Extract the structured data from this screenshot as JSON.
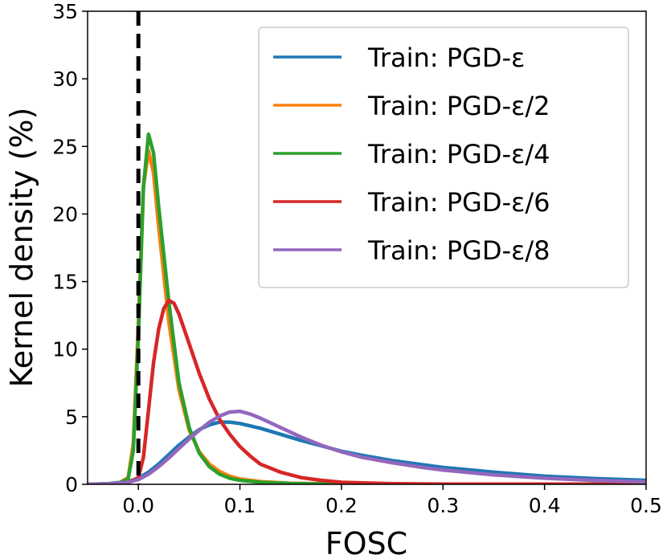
{
  "chart_data": {
    "type": "line",
    "xlabel": "FOSC",
    "ylabel": "Kernel density (%)",
    "xlim": [
      -0.05,
      0.5
    ],
    "ylim": [
      0,
      35
    ],
    "xticks": [
      0.0,
      0.1,
      0.2,
      0.3,
      0.4,
      0.5
    ],
    "xtick_labels": [
      "0.0",
      "0.1",
      "0.2",
      "0.3",
      "0.4",
      "0.5"
    ],
    "yticks": [
      0,
      5,
      10,
      15,
      20,
      25,
      30,
      35
    ],
    "ytick_labels": [
      "0",
      "5",
      "10",
      "15",
      "20",
      "25",
      "30",
      "35"
    ],
    "grid": false,
    "legend_position": "top-right",
    "vline": {
      "x": 0.0,
      "style": "dashed",
      "color": "#000000"
    },
    "series": [
      {
        "name": "Train: PGD-ε",
        "color": "#1f77b4",
        "points": [
          [
            -0.05,
            0
          ],
          [
            -0.03,
            0.05
          ],
          [
            -0.01,
            0.2
          ],
          [
            0,
            0.45
          ],
          [
            0.01,
            0.9
          ],
          [
            0.02,
            1.5
          ],
          [
            0.03,
            2.2
          ],
          [
            0.04,
            2.9
          ],
          [
            0.05,
            3.5
          ],
          [
            0.06,
            4.05
          ],
          [
            0.07,
            4.4
          ],
          [
            0.08,
            4.6
          ],
          [
            0.09,
            4.6
          ],
          [
            0.1,
            4.5
          ],
          [
            0.12,
            4.15
          ],
          [
            0.14,
            3.7
          ],
          [
            0.16,
            3.25
          ],
          [
            0.18,
            2.85
          ],
          [
            0.2,
            2.45
          ],
          [
            0.22,
            2.15
          ],
          [
            0.25,
            1.75
          ],
          [
            0.28,
            1.45
          ],
          [
            0.3,
            1.25
          ],
          [
            0.35,
            0.9
          ],
          [
            0.4,
            0.6
          ],
          [
            0.45,
            0.42
          ],
          [
            0.5,
            0.3
          ]
        ]
      },
      {
        "name": "Train: PGD-ε/2",
        "color": "#ff7f0e",
        "points": [
          [
            -0.05,
            0
          ],
          [
            -0.02,
            0.05
          ],
          [
            -0.01,
            0.5
          ],
          [
            -0.005,
            3
          ],
          [
            0,
            12
          ],
          [
            0.005,
            22
          ],
          [
            0.01,
            24.7
          ],
          [
            0.015,
            23
          ],
          [
            0.02,
            19
          ],
          [
            0.03,
            12
          ],
          [
            0.04,
            7
          ],
          [
            0.05,
            4
          ],
          [
            0.06,
            2.4
          ],
          [
            0.07,
            1.5
          ],
          [
            0.08,
            0.95
          ],
          [
            0.09,
            0.6
          ],
          [
            0.1,
            0.4
          ],
          [
            0.12,
            0.2
          ],
          [
            0.15,
            0.08
          ],
          [
            0.2,
            0.03
          ],
          [
            0.3,
            0.01
          ],
          [
            0.5,
            0
          ]
        ]
      },
      {
        "name": "Train: PGD-ε/4",
        "color": "#2ca02c",
        "points": [
          [
            -0.05,
            0
          ],
          [
            -0.02,
            0.05
          ],
          [
            -0.01,
            0.4
          ],
          [
            -0.005,
            2.5
          ],
          [
            0,
            11
          ],
          [
            0.005,
            22
          ],
          [
            0.01,
            25.9
          ],
          [
            0.015,
            24.5
          ],
          [
            0.02,
            20.5
          ],
          [
            0.03,
            13.5
          ],
          [
            0.04,
            7.5
          ],
          [
            0.05,
            4.2
          ],
          [
            0.06,
            2.3
          ],
          [
            0.07,
            1.3
          ],
          [
            0.08,
            0.75
          ],
          [
            0.09,
            0.45
          ],
          [
            0.1,
            0.3
          ],
          [
            0.12,
            0.15
          ],
          [
            0.15,
            0.06
          ],
          [
            0.2,
            0.02
          ],
          [
            0.3,
            0.01
          ],
          [
            0.5,
            0
          ]
        ]
      },
      {
        "name": "Train: PGD-ε/6",
        "color": "#d62728",
        "points": [
          [
            -0.05,
            0
          ],
          [
            -0.02,
            0.02
          ],
          [
            -0.01,
            0.1
          ],
          [
            0,
            0.5
          ],
          [
            0.005,
            2
          ],
          [
            0.01,
            5.5
          ],
          [
            0.015,
            9
          ],
          [
            0.02,
            11.5
          ],
          [
            0.025,
            13
          ],
          [
            0.03,
            13.6
          ],
          [
            0.035,
            13.4
          ],
          [
            0.04,
            12.6
          ],
          [
            0.05,
            10.4
          ],
          [
            0.06,
            8.2
          ],
          [
            0.07,
            6.3
          ],
          [
            0.08,
            4.8
          ],
          [
            0.09,
            3.7
          ],
          [
            0.1,
            2.8
          ],
          [
            0.11,
            2.1
          ],
          [
            0.12,
            1.5
          ],
          [
            0.14,
            0.9
          ],
          [
            0.16,
            0.5
          ],
          [
            0.18,
            0.3
          ],
          [
            0.2,
            0.15
          ],
          [
            0.25,
            0.05
          ],
          [
            0.3,
            0.02
          ],
          [
            0.4,
            0.01
          ],
          [
            0.5,
            0
          ]
        ]
      },
      {
        "name": "Train: PGD-ε/8",
        "color": "#9467bd",
        "points": [
          [
            -0.05,
            0
          ],
          [
            -0.03,
            0.03
          ],
          [
            -0.01,
            0.15
          ],
          [
            0,
            0.35
          ],
          [
            0.01,
            0.75
          ],
          [
            0.02,
            1.3
          ],
          [
            0.03,
            1.95
          ],
          [
            0.04,
            2.65
          ],
          [
            0.05,
            3.35
          ],
          [
            0.06,
            4.0
          ],
          [
            0.07,
            4.6
          ],
          [
            0.08,
            5.05
          ],
          [
            0.09,
            5.35
          ],
          [
            0.1,
            5.4
          ],
          [
            0.11,
            5.2
          ],
          [
            0.12,
            4.9
          ],
          [
            0.14,
            4.2
          ],
          [
            0.16,
            3.5
          ],
          [
            0.18,
            2.9
          ],
          [
            0.2,
            2.4
          ],
          [
            0.22,
            2.0
          ],
          [
            0.25,
            1.6
          ],
          [
            0.28,
            1.25
          ],
          [
            0.3,
            1.05
          ],
          [
            0.35,
            0.7
          ],
          [
            0.4,
            0.45
          ],
          [
            0.45,
            0.28
          ],
          [
            0.5,
            0.18
          ]
        ]
      }
    ]
  }
}
